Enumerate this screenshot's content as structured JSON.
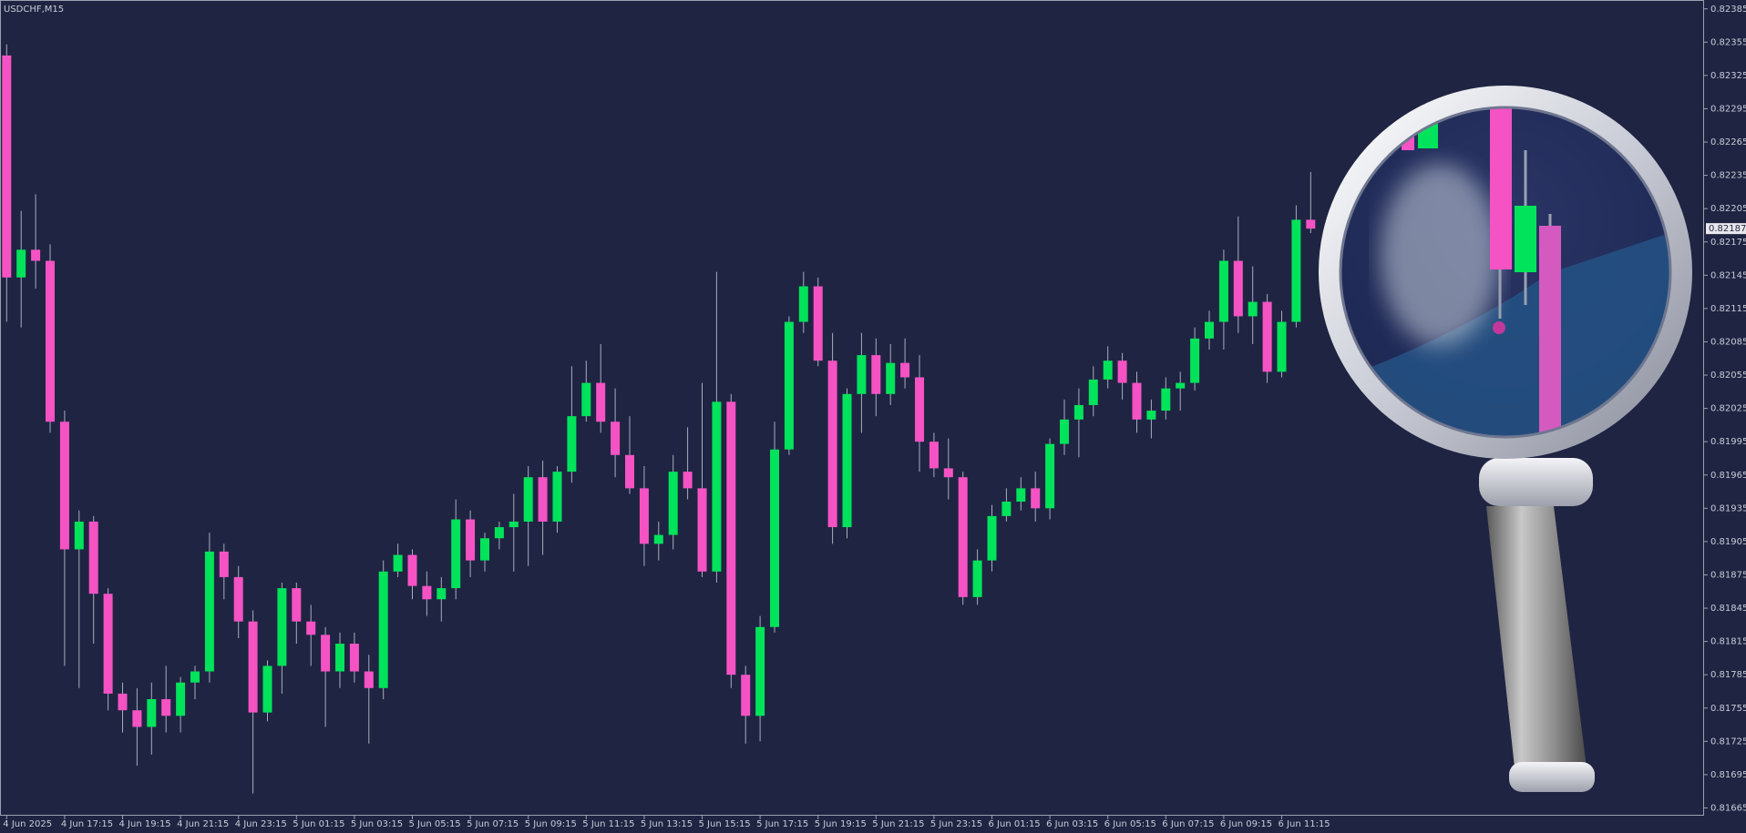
{
  "chart_data": {
    "type": "candlestick",
    "title": "USDCHF,M15",
    "up_color": "#00e35a",
    "down_color": "#f553c4",
    "categories": [
      "4 Jun 2025",
      null,
      null,
      null,
      "4 Jun 17:15",
      null,
      null,
      null,
      "4 Jun 19:15",
      null,
      null,
      null,
      "4 Jun 21:15",
      null,
      null,
      null,
      "4 Jun 23:15",
      null,
      null,
      null,
      "5 Jun 01:15",
      null,
      null,
      null,
      "5 Jun 03:15",
      null,
      null,
      null,
      "5 Jun 05:15",
      null,
      null,
      null,
      "5 Jun 07:15",
      null,
      null,
      null,
      "5 Jun 09:15",
      null,
      null,
      null,
      "5 Jun 11:15",
      null,
      null,
      null,
      "5 Jun 13:15",
      null,
      null,
      null,
      "5 Jun 15:15",
      null,
      null,
      null,
      "5 Jun 17:15",
      null,
      null,
      null,
      "5 Jun 19:15",
      null,
      null,
      null,
      "5 Jun 21:15",
      null,
      null,
      null,
      "5 Jun 23:15",
      null,
      null,
      null,
      "6 Jun 01:15",
      null,
      null,
      null,
      "6 Jun 03:15",
      null,
      null,
      null,
      "6 Jun 05:15",
      null,
      null,
      null,
      "6 Jun 07:15",
      null,
      null,
      null,
      "6 Jun 09:15",
      null,
      null,
      null,
      "6 Jun 11:15",
      null,
      null
    ],
    "open": [
      0.82343,
      0.82143,
      0.82168,
      0.82158,
      0.82013,
      0.81898,
      0.81923,
      0.81858,
      0.81768,
      0.81753,
      0.81738,
      0.81763,
      0.81748,
      0.81778,
      0.81788,
      0.81896,
      0.81873,
      0.81833,
      0.81751,
      0.81793,
      0.81863,
      0.81833,
      0.81821,
      0.81788,
      0.81813,
      0.81788,
      0.81773,
      0.81878,
      0.81893,
      0.81865,
      0.81853,
      0.81863,
      0.81925,
      0.81888,
      0.81908,
      0.81918,
      0.81923,
      0.81963,
      0.81923,
      0.81968,
      0.82018,
      0.82048,
      0.82013,
      0.81983,
      0.81953,
      0.81903,
      0.81911,
      0.81968,
      0.81953,
      0.81878,
      0.82031,
      0.81785,
      0.81748,
      0.81828,
      0.81988,
      0.82103,
      0.82135,
      0.82068,
      0.81918,
      0.82038,
      0.82073,
      0.82038,
      0.82066,
      0.82053,
      0.81995,
      0.81971,
      0.81963,
      0.81855,
      0.81888,
      0.81928,
      0.81941,
      0.81953,
      0.81935,
      0.81993,
      0.82015,
      0.82028,
      0.82051,
      0.82068,
      0.82048,
      0.82015,
      0.82023,
      0.82043,
      0.82048,
      0.82088,
      0.82103,
      0.82158,
      0.82108,
      0.82121,
      0.82058,
      0.82103,
      0.82195
    ],
    "high": [
      0.82353,
      0.82203,
      0.82218,
      0.82173,
      0.82023,
      0.81933,
      0.81928,
      0.81863,
      0.81778,
      0.81773,
      0.81778,
      0.81793,
      0.81783,
      0.81793,
      0.81913,
      0.81903,
      0.81883,
      0.81843,
      0.81798,
      0.81868,
      0.81868,
      0.81848,
      0.81828,
      0.81823,
      0.81823,
      0.81803,
      0.81888,
      0.81903,
      0.81898,
      0.81878,
      0.81873,
      0.81943,
      0.81933,
      0.81913,
      0.81923,
      0.81948,
      0.81973,
      0.81978,
      0.81973,
      0.82063,
      0.82068,
      0.82083,
      0.82043,
      0.82018,
      0.81973,
      0.81923,
      0.81983,
      0.82008,
      0.82048,
      0.82148,
      0.82038,
      0.81793,
      0.81838,
      0.82013,
      0.82108,
      0.82148,
      0.82143,
      0.82093,
      0.82043,
      0.82093,
      0.82088,
      0.82083,
      0.82088,
      0.82073,
      0.82003,
      0.81998,
      0.81968,
      0.81898,
      0.81938,
      0.81953,
      0.81963,
      0.81968,
      0.81998,
      0.82033,
      0.82043,
      0.82063,
      0.82081,
      0.82075,
      0.82058,
      0.82033,
      0.82053,
      0.82058,
      0.82098,
      0.82113,
      0.82168,
      0.82198,
      0.82153,
      0.82128,
      0.82113,
      0.82208,
      0.82238
    ],
    "low": [
      0.82103,
      0.82098,
      0.82133,
      0.82003,
      0.81793,
      0.81773,
      0.81813,
      0.81753,
      0.81733,
      0.81703,
      0.81713,
      0.81733,
      0.81733,
      0.81763,
      0.81778,
      0.81853,
      0.81818,
      0.81678,
      0.81743,
      0.81768,
      0.81813,
      0.81793,
      0.81738,
      0.81773,
      0.81778,
      0.81723,
      0.81763,
      0.81873,
      0.81853,
      0.81838,
      0.81833,
      0.81853,
      0.81873,
      0.81878,
      0.81898,
      0.81878,
      0.81883,
      0.81893,
      0.81913,
      0.81958,
      0.82013,
      0.82003,
      0.81963,
      0.81948,
      0.81883,
      0.81888,
      0.81898,
      0.81943,
      0.81873,
      0.81868,
      0.81773,
      0.81723,
      0.81725,
      0.81823,
      0.81983,
      0.82093,
      0.82063,
      0.81903,
      0.81908,
      0.82003,
      0.82018,
      0.82028,
      0.82043,
      0.81968,
      0.81963,
      0.81943,
      0.81848,
      0.81848,
      0.81878,
      0.81923,
      0.81933,
      0.81923,
      0.81925,
      0.81983,
      0.81981,
      0.82018,
      0.82043,
      0.82033,
      0.82003,
      0.81998,
      0.82015,
      0.82023,
      0.82041,
      0.82078,
      0.82078,
      0.82093,
      0.82083,
      0.82048,
      0.82053,
      0.82098,
      0.82183
    ],
    "close": [
      0.82143,
      0.82168,
      0.82158,
      0.82013,
      0.81898,
      0.81923,
      0.81858,
      0.81768,
      0.81753,
      0.81738,
      0.81763,
      0.81748,
      0.81778,
      0.81788,
      0.81896,
      0.81873,
      0.81833,
      0.81751,
      0.81793,
      0.81863,
      0.81833,
      0.81821,
      0.81788,
      0.81813,
      0.81788,
      0.81773,
      0.81878,
      0.81893,
      0.81865,
      0.81853,
      0.81863,
      0.81925,
      0.81888,
      0.81908,
      0.81918,
      0.81923,
      0.81963,
      0.81923,
      0.81968,
      0.82018,
      0.82048,
      0.82013,
      0.81983,
      0.81953,
      0.81903,
      0.81911,
      0.81968,
      0.81953,
      0.81878,
      0.82031,
      0.81785,
      0.81748,
      0.81828,
      0.81988,
      0.82103,
      0.82135,
      0.82068,
      0.81918,
      0.82038,
      0.82073,
      0.82038,
      0.82066,
      0.82053,
      0.81995,
      0.81971,
      0.81963,
      0.81855,
      0.81888,
      0.81928,
      0.81941,
      0.81953,
      0.81935,
      0.81993,
      0.82015,
      0.82028,
      0.82051,
      0.82068,
      0.82048,
      0.82015,
      0.82023,
      0.82043,
      0.82048,
      0.82088,
      0.82103,
      0.82158,
      0.82108,
      0.82121,
      0.82058,
      0.82103,
      0.82195,
      0.82187
    ],
    "last_price": 0.82187,
    "ylim": [
      0.81658,
      0.82393
    ],
    "yticks": [
      0.82385,
      0.82355,
      0.82325,
      0.82295,
      0.82265,
      0.82235,
      0.82205,
      0.82175,
      0.82145,
      0.82115,
      0.82085,
      0.82055,
      0.82025,
      0.81995,
      0.81965,
      0.81935,
      0.81905,
      0.81875,
      0.81845,
      0.81815,
      0.81785,
      0.81755,
      0.81725,
      0.81695,
      0.81665
    ]
  }
}
